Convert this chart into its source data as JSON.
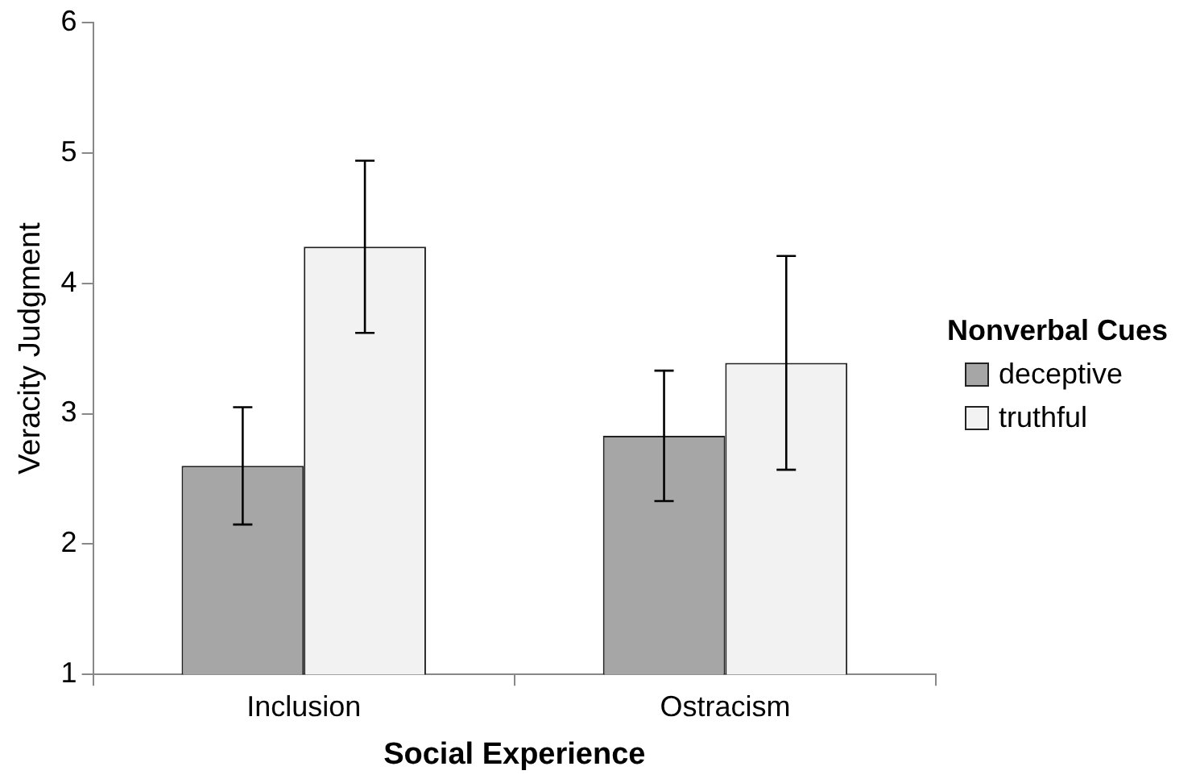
{
  "chart_data": {
    "type": "bar",
    "xlabel": "Social Experience",
    "ylabel": "Veracity Judgment",
    "legend_title": "Nonverbal Cues",
    "categories": [
      "Inclusion",
      "Ostracism"
    ],
    "series": [
      {
        "name": "deceptive",
        "color": "#a6a6a6",
        "values": [
          2.6,
          2.83
        ],
        "errors": [
          0.45,
          0.5
        ]
      },
      {
        "name": "truthful",
        "color": "#f2f2f2",
        "values": [
          4.28,
          3.39
        ],
        "errors": [
          0.66,
          0.82
        ]
      }
    ],
    "ylim": [
      1,
      6
    ],
    "yticks": [
      1,
      2,
      3,
      4,
      5,
      6
    ],
    "grid": false,
    "legend": "right"
  }
}
